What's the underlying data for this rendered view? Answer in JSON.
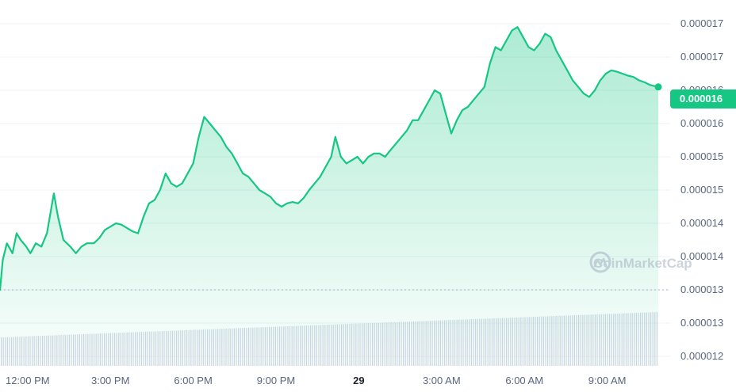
{
  "colors": {
    "line": "#16c784",
    "fill_top": "#16c784",
    "badge_bg": "#16c784",
    "volume": "#cfd6e4",
    "grid": "#eff2f5",
    "tick_text": "#58667e"
  },
  "watermark": {
    "text": "CoinMarketCap",
    "icon": "coinmarketcap-logo-icon"
  },
  "price_badge": {
    "label": "0.000016"
  },
  "chart_data": {
    "type": "line",
    "grid": true,
    "legend": "none",
    "y_tick_labels": [
      "0.000017",
      "0.000017",
      "0.000016",
      "0.000016",
      "0.000015",
      "0.000015",
      "0.000014",
      "0.000014",
      "0.000013",
      "0.000013",
      "0.000012"
    ],
    "x_tick_labels": [
      {
        "label": "12:00 PM",
        "t": 12,
        "bold": false
      },
      {
        "label": "3:00 PM",
        "t": 15,
        "bold": false
      },
      {
        "label": "6:00 PM",
        "t": 18,
        "bold": false
      },
      {
        "label": "9:00 PM",
        "t": 21,
        "bold": false
      },
      {
        "label": "29",
        "t": 24,
        "bold": true
      },
      {
        "label": "3:00 AM",
        "t": 27,
        "bold": false
      },
      {
        "label": "6:00 AM",
        "t": 30,
        "bold": false
      },
      {
        "label": "9:00 AM",
        "t": 33,
        "bold": false
      }
    ],
    "x_range_hours": [
      11.0,
      34.85
    ],
    "ylim": [
      1.2e-05,
      1.7e-05
    ],
    "open_price": 1.3e-05,
    "last_price": 1.605e-05,
    "series": [
      {
        "values": [
          [
            11.0,
            1.3e-05
          ],
          [
            11.1,
            1.345e-05
          ],
          [
            11.25,
            1.37e-05
          ],
          [
            11.45,
            1.355e-05
          ],
          [
            11.6,
            1.385e-05
          ],
          [
            11.75,
            1.375e-05
          ],
          [
            11.95,
            1.365e-05
          ],
          [
            12.1,
            1.355e-05
          ],
          [
            12.3,
            1.37e-05
          ],
          [
            12.5,
            1.365e-05
          ],
          [
            12.7,
            1.385e-05
          ],
          [
            12.95,
            1.445e-05
          ],
          [
            13.1,
            1.41e-05
          ],
          [
            13.3,
            1.375e-05
          ],
          [
            13.55,
            1.365e-05
          ],
          [
            13.75,
            1.355e-05
          ],
          [
            13.95,
            1.365e-05
          ],
          [
            14.15,
            1.37e-05
          ],
          [
            14.4,
            1.37e-05
          ],
          [
            14.6,
            1.378e-05
          ],
          [
            14.8,
            1.39e-05
          ],
          [
            15.0,
            1.395e-05
          ],
          [
            15.2,
            1.4e-05
          ],
          [
            15.4,
            1.398e-05
          ],
          [
            15.6,
            1.393e-05
          ],
          [
            15.8,
            1.388e-05
          ],
          [
            16.0,
            1.385e-05
          ],
          [
            16.2,
            1.41e-05
          ],
          [
            16.4,
            1.43e-05
          ],
          [
            16.6,
            1.435e-05
          ],
          [
            16.8,
            1.45e-05
          ],
          [
            17.0,
            1.475e-05
          ],
          [
            17.2,
            1.46e-05
          ],
          [
            17.4,
            1.455e-05
          ],
          [
            17.6,
            1.46e-05
          ],
          [
            17.8,
            1.475e-05
          ],
          [
            18.0,
            1.49e-05
          ],
          [
            18.2,
            1.53e-05
          ],
          [
            18.4,
            1.56e-05
          ],
          [
            18.6,
            1.55e-05
          ],
          [
            18.8,
            1.54e-05
          ],
          [
            19.0,
            1.53e-05
          ],
          [
            19.2,
            1.515e-05
          ],
          [
            19.4,
            1.505e-05
          ],
          [
            19.6,
            1.49e-05
          ],
          [
            19.8,
            1.475e-05
          ],
          [
            20.0,
            1.47e-05
          ],
          [
            20.2,
            1.46e-05
          ],
          [
            20.4,
            1.45e-05
          ],
          [
            20.6,
            1.445e-05
          ],
          [
            20.8,
            1.44e-05
          ],
          [
            21.0,
            1.43e-05
          ],
          [
            21.2,
            1.425e-05
          ],
          [
            21.4,
            1.43e-05
          ],
          [
            21.6,
            1.432e-05
          ],
          [
            21.8,
            1.43e-05
          ],
          [
            22.0,
            1.438e-05
          ],
          [
            22.2,
            1.45e-05
          ],
          [
            22.4,
            1.46e-05
          ],
          [
            22.6,
            1.47e-05
          ],
          [
            22.8,
            1.485e-05
          ],
          [
            23.0,
            1.5e-05
          ],
          [
            23.15,
            1.53e-05
          ],
          [
            23.35,
            1.5e-05
          ],
          [
            23.55,
            1.49e-05
          ],
          [
            23.75,
            1.495e-05
          ],
          [
            23.95,
            1.5e-05
          ],
          [
            24.15,
            1.49e-05
          ],
          [
            24.35,
            1.5e-05
          ],
          [
            24.55,
            1.505e-05
          ],
          [
            24.75,
            1.505e-05
          ],
          [
            24.95,
            1.5e-05
          ],
          [
            25.15,
            1.51e-05
          ],
          [
            25.35,
            1.52e-05
          ],
          [
            25.55,
            1.53e-05
          ],
          [
            25.75,
            1.54e-05
          ],
          [
            25.95,
            1.555e-05
          ],
          [
            26.15,
            1.555e-05
          ],
          [
            26.35,
            1.57e-05
          ],
          [
            26.55,
            1.585e-05
          ],
          [
            26.75,
            1.6e-05
          ],
          [
            26.95,
            1.595e-05
          ],
          [
            27.15,
            1.565e-05
          ],
          [
            27.35,
            1.535e-05
          ],
          [
            27.55,
            1.555e-05
          ],
          [
            27.75,
            1.57e-05
          ],
          [
            27.95,
            1.575e-05
          ],
          [
            28.15,
            1.585e-05
          ],
          [
            28.35,
            1.595e-05
          ],
          [
            28.55,
            1.605e-05
          ],
          [
            28.75,
            1.64e-05
          ],
          [
            28.95,
            1.665e-05
          ],
          [
            29.15,
            1.66e-05
          ],
          [
            29.35,
            1.675e-05
          ],
          [
            29.55,
            1.69e-05
          ],
          [
            29.75,
            1.695e-05
          ],
          [
            29.95,
            1.68e-05
          ],
          [
            30.15,
            1.665e-05
          ],
          [
            30.35,
            1.66e-05
          ],
          [
            30.55,
            1.67e-05
          ],
          [
            30.75,
            1.685e-05
          ],
          [
            30.95,
            1.68e-05
          ],
          [
            31.15,
            1.66e-05
          ],
          [
            31.35,
            1.645e-05
          ],
          [
            31.55,
            1.63e-05
          ],
          [
            31.75,
            1.615e-05
          ],
          [
            31.95,
            1.605e-05
          ],
          [
            32.15,
            1.595e-05
          ],
          [
            32.35,
            1.59e-05
          ],
          [
            32.55,
            1.6e-05
          ],
          [
            32.75,
            1.615e-05
          ],
          [
            32.95,
            1.625e-05
          ],
          [
            33.15,
            1.63e-05
          ],
          [
            33.35,
            1.628e-05
          ],
          [
            33.55,
            1.625e-05
          ],
          [
            33.75,
            1.622e-05
          ],
          [
            33.95,
            1.62e-05
          ],
          [
            34.15,
            1.615e-05
          ],
          [
            34.35,
            1.612e-05
          ],
          [
            34.55,
            1.608e-05
          ],
          [
            34.85,
            1.605e-05
          ]
        ]
      }
    ]
  }
}
